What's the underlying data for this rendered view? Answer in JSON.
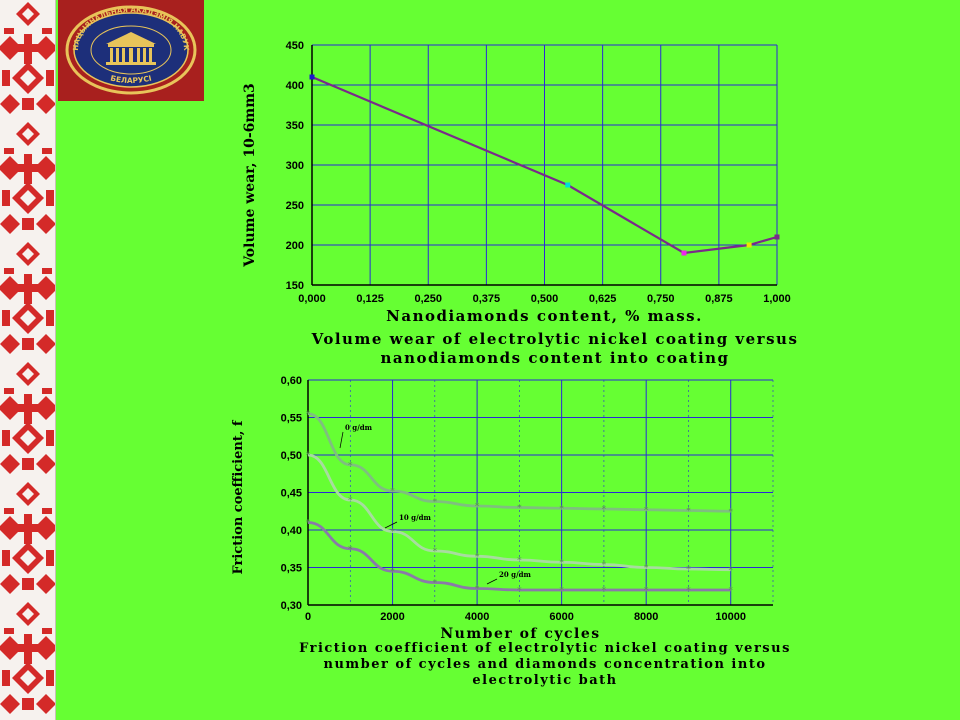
{
  "emblem": {
    "text_top": "НАЦЫЯНАЛЬНАЯ АКАДЭМІЯ НАВУК",
    "text_bottom": "БЕЛАРУСІ",
    "background": "#a8201e",
    "gold": "#e8c45a"
  },
  "colors": {
    "background": "#66ff33",
    "ornament_red": "#d42a28",
    "grid": "#2a2ad8",
    "line_wear": "#7a2a8a"
  },
  "chart_data": [
    {
      "type": "line",
      "title": "",
      "xlabel": "Nanodiamonds content, % mass.",
      "ylabel": "Volume wear, 10-6mm3",
      "xlim": [
        0,
        1
      ],
      "ylim": [
        150,
        450
      ],
      "x_ticks": [
        "0,000",
        "0,125",
        "0,250",
        "0,375",
        "0,500",
        "0,625",
        "0,750",
        "0,875",
        "1,000"
      ],
      "y_ticks": [
        "150",
        "200",
        "250",
        "300",
        "350",
        "400",
        "450"
      ],
      "grid": true,
      "caption": "Volume wear of electrolytic nickel coating versus nanodiamonds content into coating",
      "series": [
        {
          "color": "#7a2a8a",
          "points": [
            {
              "x": 0.0,
              "y": 410,
              "marker": "#1a1acc"
            },
            {
              "x": 0.55,
              "y": 275,
              "marker": "#00dcdc"
            },
            {
              "x": 0.8,
              "y": 190,
              "marker": "#ee22ee"
            },
            {
              "x": 0.94,
              "y": 200,
              "marker": "#e8e800"
            },
            {
              "x": 1.0,
              "y": 210,
              "marker": "#7a2a8a"
            }
          ]
        }
      ]
    },
    {
      "type": "line",
      "title": "",
      "xlabel": "Number of cycles",
      "ylabel": "Friction coefficient, f",
      "xlim": [
        0,
        11000
      ],
      "ylim": [
        0.3,
        0.6
      ],
      "x_ticks": [
        "0",
        "2000",
        "4000",
        "6000",
        "8000",
        "10000"
      ],
      "y_ticks": [
        "0,30",
        "0,35",
        "0,40",
        "0,45",
        "0,50",
        "0,55",
        "0,60"
      ],
      "grid": true,
      "caption": "Friction coefficient of electrolytic nickel coating versus number of cycles and diamonds concentration into electrolytic bath",
      "series": [
        {
          "name": "0 g/dm",
          "color": "#7fbf7f",
          "x": [
            0,
            1000,
            2000,
            3000,
            4000,
            5000,
            6000,
            7000,
            8000,
            9000,
            10000
          ],
          "y": [
            0.555,
            0.487,
            0.452,
            0.438,
            0.432,
            0.43,
            0.429,
            0.428,
            0.427,
            0.426,
            0.425
          ]
        },
        {
          "name": "10 g/dm",
          "color": "#a8dca0",
          "x": [
            0,
            1000,
            2000,
            3000,
            4000,
            5000,
            6000,
            7000,
            8000,
            9000,
            10000
          ],
          "y": [
            0.5,
            0.44,
            0.398,
            0.372,
            0.365,
            0.36,
            0.357,
            0.354,
            0.35,
            0.348,
            0.347
          ]
        },
        {
          "name": "20 g/dm",
          "color": "#8a7aa8",
          "x": [
            0,
            1000,
            2000,
            3000,
            4000,
            5000,
            6000,
            7000,
            8000,
            9000,
            10000
          ],
          "y": [
            0.41,
            0.375,
            0.345,
            0.33,
            0.322,
            0.32,
            0.32,
            0.32,
            0.32,
            0.32,
            0.32
          ]
        }
      ]
    }
  ]
}
